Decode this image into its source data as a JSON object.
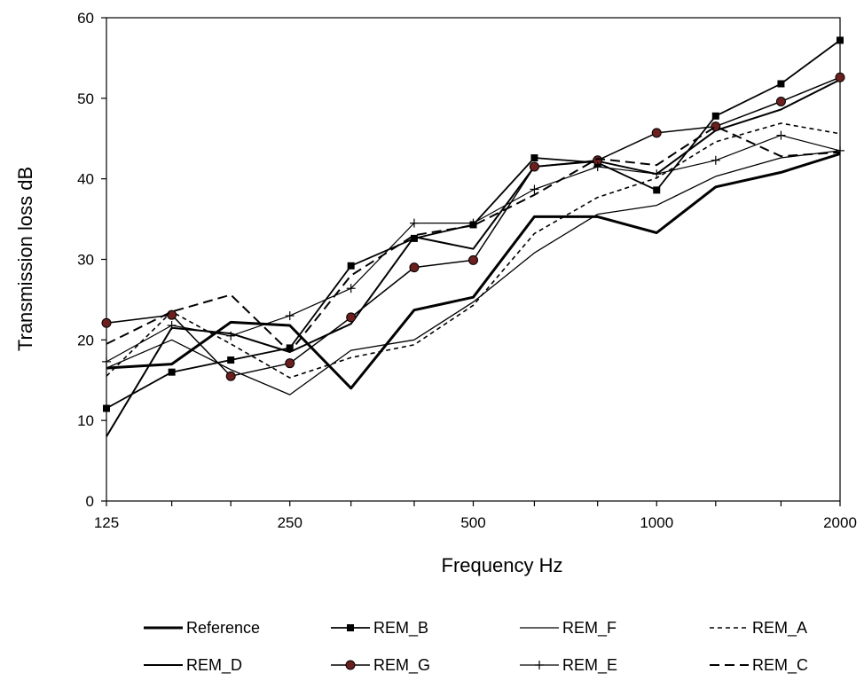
{
  "chart_data": {
    "type": "line",
    "xlabel": "Frequency  Hz",
    "ylabel": "Transmission loss  dB",
    "x_scale": "log",
    "x": [
      125,
      160,
      200,
      250,
      315,
      400,
      500,
      630,
      800,
      1000,
      1250,
      1600,
      2000
    ],
    "x_tick_labels": [
      "125",
      "250",
      "500",
      "1000",
      "2000"
    ],
    "x_tick_values": [
      125,
      250,
      500,
      1000,
      2000
    ],
    "ylim": [
      0,
      60
    ],
    "y_ticks": [
      0,
      10,
      20,
      30,
      40,
      50,
      60
    ],
    "grid": false,
    "legend_position": "bottom",
    "series": [
      {
        "name": "Reference",
        "style": "thick-solid",
        "values": [
          16.5,
          17.0,
          22.2,
          21.8,
          14.0,
          23.7,
          25.3,
          35.3,
          35.3,
          33.3,
          39.0,
          40.8,
          43.1
        ]
      },
      {
        "name": "REM_B",
        "style": "solid-square",
        "values": [
          11.5,
          16.0,
          17.5,
          19.0,
          29.2,
          32.6,
          34.3,
          42.6,
          42.0,
          38.6,
          47.8,
          51.8,
          57.2
        ]
      },
      {
        "name": "REM_F",
        "style": "thin-solid",
        "values": [
          16.5,
          20.0,
          16.3,
          13.2,
          18.7,
          20.0,
          24.7,
          30.8,
          35.6,
          36.7,
          40.3,
          42.6,
          43.5
        ]
      },
      {
        "name": "REM_A",
        "style": "short-dash",
        "values": [
          15.5,
          23.5,
          19.5,
          15.3,
          17.8,
          19.4,
          24.3,
          33.2,
          37.7,
          40.1,
          44.6,
          46.9,
          45.6
        ]
      },
      {
        "name": "REM_D",
        "style": "solid",
        "values": [
          8.0,
          21.5,
          20.8,
          18.5,
          22.0,
          32.8,
          31.3,
          41.5,
          42.2,
          40.6,
          46.0,
          48.6,
          52.3
        ]
      },
      {
        "name": "REM_G",
        "style": "solid-circle",
        "values": [
          22.1,
          23.1,
          15.5,
          17.1,
          22.8,
          29.0,
          29.9,
          41.5,
          42.3,
          45.7,
          46.5,
          49.6,
          52.6
        ]
      },
      {
        "name": "REM_E",
        "style": "solid-plus",
        "values": [
          17.3,
          21.8,
          20.5,
          23.0,
          26.4,
          34.5,
          34.5,
          38.7,
          41.5,
          40.6,
          42.3,
          45.4,
          43.5
        ]
      },
      {
        "name": "REM_C",
        "style": "long-dash",
        "values": [
          19.5,
          23.5,
          25.6,
          18.5,
          28.0,
          33.0,
          34.2,
          38.0,
          42.5,
          41.7,
          46.5,
          42.8,
          43.3
        ]
      }
    ]
  }
}
